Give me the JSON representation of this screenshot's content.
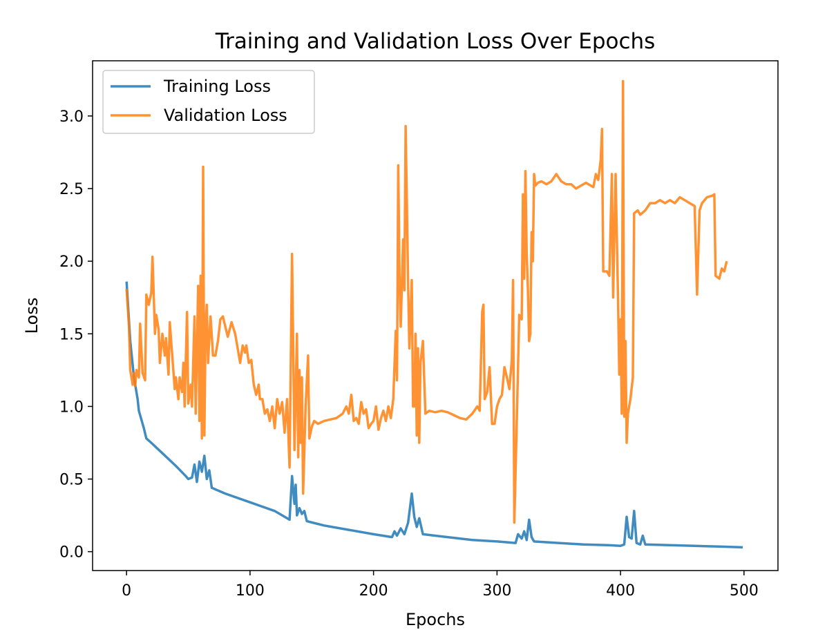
{
  "chart_data": {
    "type": "line",
    "title": "Training and Validation Loss Over Epochs",
    "xlabel": "Epochs",
    "ylabel": "Loss",
    "xlim": [
      -27.5,
      527.5
    ],
    "ylim": [
      -0.13,
      3.38
    ],
    "xticks": [
      0,
      100,
      200,
      300,
      400,
      500
    ],
    "yticks": [
      0.0,
      0.5,
      1.0,
      1.5,
      2.0,
      2.5,
      3.0
    ],
    "xtick_labels": [
      "0",
      "100",
      "200",
      "300",
      "400",
      "500"
    ],
    "ytick_labels": [
      "0.0",
      "0.5",
      "1.0",
      "1.5",
      "2.0",
      "2.5",
      "3.0"
    ],
    "grid": false,
    "legend_position": "upper-left",
    "series": [
      {
        "name": "Training Loss",
        "color": "#1f77b4",
        "points": [
          [
            0,
            1.86
          ],
          [
            3,
            1.45
          ],
          [
            6,
            1.2
          ],
          [
            9,
            1.05
          ],
          [
            10,
            0.97
          ],
          [
            12,
            0.91
          ],
          [
            14,
            0.85
          ],
          [
            16,
            0.78
          ],
          [
            20,
            0.75
          ],
          [
            30,
            0.67
          ],
          [
            40,
            0.59
          ],
          [
            48,
            0.52
          ],
          [
            50,
            0.5
          ],
          [
            53,
            0.51
          ],
          [
            55,
            0.6
          ],
          [
            57,
            0.48
          ],
          [
            59,
            0.62
          ],
          [
            61,
            0.55
          ],
          [
            63,
            0.66
          ],
          [
            65,
            0.5
          ],
          [
            67,
            0.56
          ],
          [
            69,
            0.44
          ],
          [
            80,
            0.4
          ],
          [
            100,
            0.34
          ],
          [
            120,
            0.28
          ],
          [
            132,
            0.22
          ],
          [
            134,
            0.52
          ],
          [
            136,
            0.33
          ],
          [
            137,
            0.46
          ],
          [
            138,
            0.25
          ],
          [
            140,
            0.3
          ],
          [
            142,
            0.26
          ],
          [
            144,
            0.28
          ],
          [
            146,
            0.21
          ],
          [
            160,
            0.18
          ],
          [
            180,
            0.15
          ],
          [
            200,
            0.12
          ],
          [
            215,
            0.1
          ],
          [
            217,
            0.14
          ],
          [
            219,
            0.11
          ],
          [
            222,
            0.16
          ],
          [
            225,
            0.12
          ],
          [
            228,
            0.2
          ],
          [
            231,
            0.4
          ],
          [
            233,
            0.24
          ],
          [
            235,
            0.17
          ],
          [
            237,
            0.23
          ],
          [
            240,
            0.12
          ],
          [
            260,
            0.1
          ],
          [
            280,
            0.08
          ],
          [
            300,
            0.07
          ],
          [
            315,
            0.06
          ],
          [
            317,
            0.12
          ],
          [
            320,
            0.09
          ],
          [
            322,
            0.14
          ],
          [
            324,
            0.08
          ],
          [
            326,
            0.22
          ],
          [
            328,
            0.1
          ],
          [
            330,
            0.07
          ],
          [
            350,
            0.06
          ],
          [
            370,
            0.05
          ],
          [
            390,
            0.045
          ],
          [
            400,
            0.04
          ],
          [
            403,
            0.05
          ],
          [
            405,
            0.24
          ],
          [
            407,
            0.1
          ],
          [
            409,
            0.09
          ],
          [
            411,
            0.28
          ],
          [
            413,
            0.06
          ],
          [
            416,
            0.05
          ],
          [
            418,
            0.11
          ],
          [
            420,
            0.05
          ],
          [
            440,
            0.045
          ],
          [
            460,
            0.04
          ],
          [
            480,
            0.035
          ],
          [
            499,
            0.03
          ]
        ]
      },
      {
        "name": "Validation Loss",
        "color": "#ff7f0e",
        "points": [
          [
            0,
            1.81
          ],
          [
            2,
            1.55
          ],
          [
            3,
            1.25
          ],
          [
            5,
            1.15
          ],
          [
            6,
            1.23
          ],
          [
            7,
            1.14
          ],
          [
            8,
            1.25
          ],
          [
            10,
            1.2
          ],
          [
            11,
            1.57
          ],
          [
            13,
            1.23
          ],
          [
            15,
            1.18
          ],
          [
            16,
            1.77
          ],
          [
            18,
            1.7
          ],
          [
            20,
            1.78
          ],
          [
            21,
            2.03
          ],
          [
            23,
            1.5
          ],
          [
            24,
            1.63
          ],
          [
            26,
            1.53
          ],
          [
            27,
            1.3
          ],
          [
            29,
            1.5
          ],
          [
            31,
            1.35
          ],
          [
            32,
            1.47
          ],
          [
            34,
            1.22
          ],
          [
            35,
            1.58
          ],
          [
            37,
            1.35
          ],
          [
            39,
            1.12
          ],
          [
            40,
            1.2
          ],
          [
            42,
            1.05
          ],
          [
            43,
            1.2
          ],
          [
            45,
            1.1
          ],
          [
            46,
            1.3
          ],
          [
            47,
            1.0
          ],
          [
            49,
            1.65
          ],
          [
            50,
            1.02
          ],
          [
            52,
            1.15
          ],
          [
            53,
            1.0
          ],
          [
            55,
            1.62
          ],
          [
            56,
            0.95
          ],
          [
            58,
            1.83
          ],
          [
            59,
            0.9
          ],
          [
            60,
            1.9
          ],
          [
            61,
            0.78
          ],
          [
            62,
            2.65
          ],
          [
            63,
            0.8
          ],
          [
            64,
            1.55
          ],
          [
            65,
            1.7
          ],
          [
            66,
            1.3
          ],
          [
            68,
            1.62
          ],
          [
            70,
            1.35
          ],
          [
            72,
            1.35
          ],
          [
            74,
            1.45
          ],
          [
            76,
            1.6
          ],
          [
            78,
            1.62
          ],
          [
            80,
            1.55
          ],
          [
            82,
            1.48
          ],
          [
            85,
            1.58
          ],
          [
            88,
            1.5
          ],
          [
            90,
            1.4
          ],
          [
            92,
            1.3
          ],
          [
            94,
            1.42
          ],
          [
            96,
            1.37
          ],
          [
            97,
            1.42
          ],
          [
            99,
            1.3
          ],
          [
            101,
            1.32
          ],
          [
            103,
            1.15
          ],
          [
            105,
            1.08
          ],
          [
            107,
            1.15
          ],
          [
            108,
            1.05
          ],
          [
            110,
            1.05
          ],
          [
            112,
            0.95
          ],
          [
            114,
            0.98
          ],
          [
            116,
            0.9
          ],
          [
            118,
            1.0
          ],
          [
            120,
            0.85
          ],
          [
            122,
            1.05
          ],
          [
            124,
            0.95
          ],
          [
            126,
            1.03
          ],
          [
            128,
            0.82
          ],
          [
            130,
            1.05
          ],
          [
            132,
            0.58
          ],
          [
            134,
            2.05
          ],
          [
            136,
            0.7
          ],
          [
            138,
            1.5
          ],
          [
            139,
            0.65
          ],
          [
            140,
            1.25
          ],
          [
            141,
            0.75
          ],
          [
            142,
            1.2
          ],
          [
            143,
            0.4
          ],
          [
            145,
            1.0
          ],
          [
            147,
            1.35
          ],
          [
            148,
            0.78
          ],
          [
            150,
            0.86
          ],
          [
            152,
            0.9
          ],
          [
            155,
            0.88
          ],
          [
            160,
            0.9
          ],
          [
            165,
            0.91
          ],
          [
            170,
            0.92
          ],
          [
            175,
            0.95
          ],
          [
            178,
            1.0
          ],
          [
            180,
            0.95
          ],
          [
            182,
            1.08
          ],
          [
            184,
            0.9
          ],
          [
            186,
            0.92
          ],
          [
            188,
            0.88
          ],
          [
            190,
            1.03
          ],
          [
            192,
            0.95
          ],
          [
            194,
            0.98
          ],
          [
            196,
            0.85
          ],
          [
            198,
            0.88
          ],
          [
            200,
            0.9
          ],
          [
            202,
            1.0
          ],
          [
            204,
            0.84
          ],
          [
            206,
            0.92
          ],
          [
            208,
            0.97
          ],
          [
            210,
            0.9
          ],
          [
            212,
            1.0
          ],
          [
            214,
            0.92
          ],
          [
            216,
            1.05
          ],
          [
            218,
            1.52
          ],
          [
            219,
            1.18
          ],
          [
            220,
            2.66
          ],
          [
            221,
            1.9
          ],
          [
            222,
            1.55
          ],
          [
            224,
            2.15
          ],
          [
            225,
            1.8
          ],
          [
            226,
            2.93
          ],
          [
            228,
            1.85
          ],
          [
            229,
            1.4
          ],
          [
            231,
            1.87
          ],
          [
            232,
            1.0
          ],
          [
            233,
            1.0
          ],
          [
            234,
            1.5
          ],
          [
            235,
            0.8
          ],
          [
            236,
            1.4
          ],
          [
            237,
            0.75
          ],
          [
            238,
            1.3
          ],
          [
            240,
            1.45
          ],
          [
            242,
            0.95
          ],
          [
            245,
            0.97
          ],
          [
            250,
            0.96
          ],
          [
            255,
            0.97
          ],
          [
            260,
            0.96
          ],
          [
            265,
            0.94
          ],
          [
            270,
            0.92
          ],
          [
            275,
            0.91
          ],
          [
            280,
            0.95
          ],
          [
            284,
            1.0
          ],
          [
            286,
            0.97
          ],
          [
            288,
            1.65
          ],
          [
            289,
            1.7
          ],
          [
            290,
            1.05
          ],
          [
            292,
            1.1
          ],
          [
            294,
            1.27
          ],
          [
            296,
            0.88
          ],
          [
            298,
            0.88
          ],
          [
            300,
            1.0
          ],
          [
            302,
            1.05
          ],
          [
            304,
            1.08
          ],
          [
            306,
            1.27
          ],
          [
            308,
            1.2
          ],
          [
            310,
            1.12
          ],
          [
            312,
            1.32
          ],
          [
            313,
            1.87
          ],
          [
            314,
            0.2
          ],
          [
            316,
            0.9
          ],
          [
            318,
            1.63
          ],
          [
            320,
            1.6
          ],
          [
            321,
            2.46
          ],
          [
            322,
            1.88
          ],
          [
            323,
            2.62
          ],
          [
            324,
            2.05
          ],
          [
            325,
            1.8
          ],
          [
            326,
            1.45
          ],
          [
            327,
            1.5
          ],
          [
            328,
            2.2
          ],
          [
            329,
            2.0
          ],
          [
            330,
            2.6
          ],
          [
            331,
            2.52
          ],
          [
            333,
            2.54
          ],
          [
            336,
            2.55
          ],
          [
            340,
            2.53
          ],
          [
            344,
            2.55
          ],
          [
            348,
            2.6
          ],
          [
            352,
            2.55
          ],
          [
            356,
            2.53
          ],
          [
            360,
            2.53
          ],
          [
            364,
            2.5
          ],
          [
            368,
            2.52
          ],
          [
            372,
            2.54
          ],
          [
            376,
            2.52
          ],
          [
            378,
            2.51
          ],
          [
            380,
            2.6
          ],
          [
            382,
            2.56
          ],
          [
            384,
            2.7
          ],
          [
            385,
            2.91
          ],
          [
            386,
            1.93
          ],
          [
            389,
            1.93
          ],
          [
            391,
            1.9
          ],
          [
            393,
            2.6
          ],
          [
            394,
            1.75
          ],
          [
            396,
            2.6
          ],
          [
            398,
            1.75
          ],
          [
            399,
            1.22
          ],
          [
            400,
            1.6
          ],
          [
            401,
            0.95
          ],
          [
            402,
            3.24
          ],
          [
            403,
            0.93
          ],
          [
            404,
            1.45
          ],
          [
            405,
            0.75
          ],
          [
            406,
            0.95
          ],
          [
            408,
            1.05
          ],
          [
            410,
            1.2
          ],
          [
            411,
            2.33
          ],
          [
            414,
            2.35
          ],
          [
            416,
            2.32
          ],
          [
            420,
            2.35
          ],
          [
            424,
            2.4
          ],
          [
            428,
            2.4
          ],
          [
            432,
            2.42
          ],
          [
            436,
            2.4
          ],
          [
            440,
            2.42
          ],
          [
            444,
            2.4
          ],
          [
            448,
            2.44
          ],
          [
            452,
            2.42
          ],
          [
            456,
            2.4
          ],
          [
            460,
            2.38
          ],
          [
            462,
            1.77
          ],
          [
            464,
            2.35
          ],
          [
            466,
            2.4
          ],
          [
            470,
            2.44
          ],
          [
            474,
            2.45
          ],
          [
            476,
            2.46
          ],
          [
            477,
            1.9
          ],
          [
            480,
            1.88
          ],
          [
            482,
            1.95
          ],
          [
            484,
            1.93
          ],
          [
            486,
            2.0
          ]
        ]
      }
    ]
  }
}
